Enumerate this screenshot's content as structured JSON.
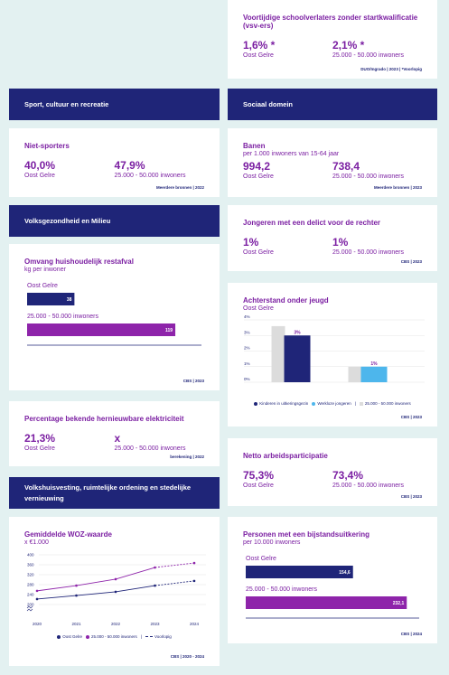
{
  "headers": [
    "Sport, cultuur en recreatie",
    "Sociaal domein",
    "Volksgezondheid en Milieu",
    "Volkshuisvesting, ruimtelijke ordening en stedelijke vernieuwing"
  ],
  "stat_cards": [
    {
      "title": "Voortijdige schoolverlaters zonder startkwalificatie (vsv-ers)",
      "stats": [
        {
          "value": "1,6% *",
          "label": "Oost Gelre"
        },
        {
          "value": "2,1% *",
          "label": "25.000 - 50.000 inwoners"
        }
      ],
      "source": "DUO/Ingrado | 2023 | *Voorlopig"
    },
    {
      "title": "Niet-sporters",
      "stats": [
        {
          "value": "40,0%",
          "label": "Oost Gelre"
        },
        {
          "value": "47,9%",
          "label": "25.000 - 50.000 inwoners"
        }
      ],
      "source": "Meerdere bronnen | 2022"
    },
    {
      "title": "Banen",
      "subtitle": "per 1.000 inwoners van 15-64 jaar",
      "stats": [
        {
          "value": "994,2",
          "label": "Oost Gelre"
        },
        {
          "value": "738,4",
          "label": "25.000 - 50.000 inwoners"
        }
      ],
      "source": "Meerdere bronnen | 2023"
    },
    {
      "title": "Jongeren met een delict voor de rechter",
      "stats": [
        {
          "value": "1%",
          "label": "Oost Gelre"
        },
        {
          "value": "1%",
          "label": "25.000 - 50.000 inwoners"
        }
      ],
      "source": "CBS | 2023"
    },
    {
      "title": "Percentage bekende hernieuwbare elektriciteit",
      "stats": [
        {
          "value": "21,3%",
          "label": "Oost Gelre"
        },
        {
          "value": "x",
          "label": "25.000 - 50.000 inwoners"
        }
      ],
      "source": "berekening | 2022"
    },
    {
      "title": "Netto arbeidsparticipatie",
      "stats": [
        {
          "value": "75,3%",
          "label": "Oost Gelre"
        },
        {
          "value": "73,4%",
          "label": "25.000 - 50.000 inwoners"
        }
      ],
      "source": "CBS | 2023"
    }
  ],
  "chart_data": [
    {
      "type": "hbar",
      "title": "Omvang huishoudelijk restafval",
      "subtitle": "kg per inwoner",
      "categories": [
        "Oost Gelre",
        "25.000 - 50.000 inwoners"
      ],
      "values": [
        38,
        119
      ],
      "colors": [
        "#1f2578",
        "#8e24aa"
      ],
      "xlim": [
        0,
        140
      ],
      "source": "CBS | 2023"
    },
    {
      "type": "bar",
      "title": "Achterstand onder jeugd",
      "subtitle": "Oost Gelre",
      "categories": [
        "Kinderen in uitkeringsgezin",
        "Werkloze jongeren"
      ],
      "series": [
        {
          "name": "25.000 - 50.000 inwoners",
          "color": "#dcdcdc",
          "values": [
            3.6,
            1
          ]
        },
        {
          "colors": [
            "#1f2578",
            "#4db6ec"
          ],
          "values": [
            3,
            1
          ],
          "value_labels": [
            "3%",
            "1%"
          ]
        }
      ],
      "ylim": [
        0,
        4
      ],
      "yticks": [
        {
          "value": 0,
          "label": "0%"
        },
        {
          "value": 1,
          "label": "1%"
        },
        {
          "value": 2,
          "label": "2%"
        },
        {
          "value": 3,
          "label": "3%"
        },
        {
          "value": 4,
          "label": "4%"
        }
      ],
      "grid": true,
      "source": "CBS | 2023"
    },
    {
      "type": "line",
      "title": "Gemiddelde WOZ-waarde",
      "subtitle": "x €1.000",
      "x": [
        2020,
        2021,
        2022,
        2023,
        2024
      ],
      "xlim": [
        2020,
        2024
      ],
      "series": [
        {
          "name": "Oost Gelre",
          "color": "#1f2578",
          "values": [
            222,
            236,
            251,
            276,
            295
          ]
        },
        {
          "name": "25.000 - 50.000 inwoners",
          "color": "#8e24aa",
          "values": [
            255,
            276,
            302,
            349,
            367
          ]
        }
      ],
      "ylim": [
        160,
        400
      ],
      "yticks": [
        200,
        240,
        280,
        320,
        360,
        400
      ],
      "grid": true,
      "provisional": {
        "from": 2023,
        "label": "Voorlopig"
      },
      "source": "CBS | 2020 - 2024"
    },
    {
      "type": "hbar",
      "title": "Personen met een bijstandsuitkering",
      "subtitle": "per 10.000 inwoners",
      "categories": [
        "Oost Gelre",
        "25.000 - 50.000 inwoners"
      ],
      "values": [
        154.6,
        232.1
      ],
      "value_labels": [
        "154,6",
        "232,1"
      ],
      "colors": [
        "#1f2578",
        "#8e24aa"
      ],
      "xlim": [
        0,
        250
      ],
      "source": "CBS | 2024"
    }
  ]
}
